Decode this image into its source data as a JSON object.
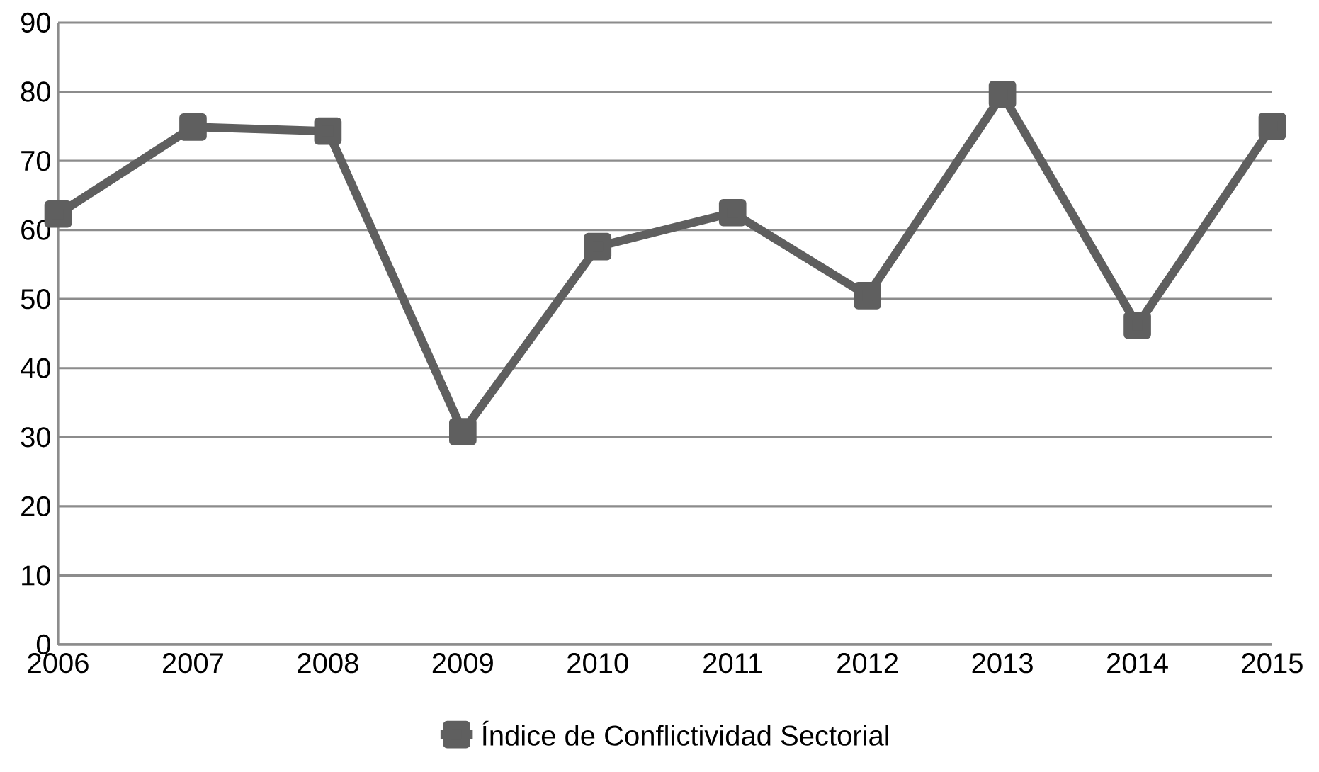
{
  "chart_data": {
    "type": "line",
    "categories": [
      "2006",
      "2007",
      "2008",
      "2009",
      "2010",
      "2011",
      "2012",
      "2013",
      "2014",
      "2015"
    ],
    "series": [
      {
        "name": "Índice de Conflictividad Sectorial",
        "color": "#5f5f5f",
        "values": [
          62.3,
          74.9,
          74.3,
          30.8,
          57.6,
          62.5,
          50.5,
          79.6,
          46.2,
          75.0
        ]
      }
    ],
    "ylim": [
      0,
      90
    ],
    "yticks": [
      0,
      10,
      20,
      30,
      40,
      50,
      60,
      70,
      80,
      90
    ],
    "grid": "y",
    "legend": "bottom",
    "marker": "square",
    "line_style": "solid"
  }
}
